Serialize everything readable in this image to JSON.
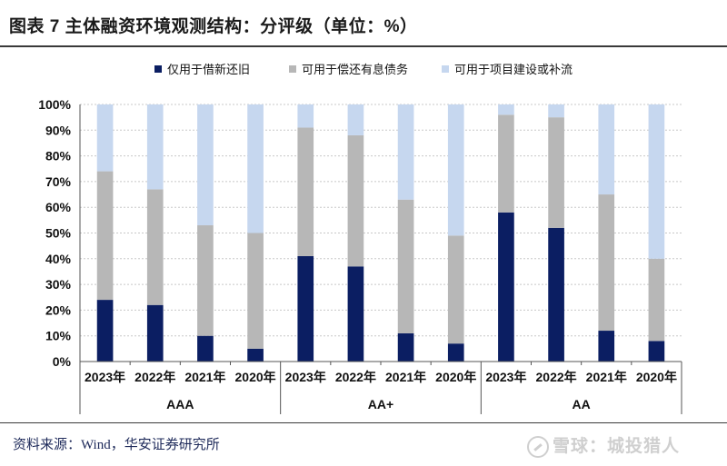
{
  "title": "图表 7  主体融资环境观测结构：分评级（单位：%）",
  "source": "资料来源：Wind，华安证券研究所",
  "watermark": "雪球：城投猎人",
  "colors": {
    "series1": "#0b1e62",
    "series2": "#b7b7b7",
    "series3": "#c6d7ef",
    "text": "#111111",
    "grid": "#c8c8c8"
  },
  "chart_data": {
    "type": "bar",
    "stacked": true,
    "groups": [
      {
        "name": "AAA",
        "categories": [
          "2023年",
          "2022年",
          "2021年",
          "2020年"
        ]
      },
      {
        "name": "AA+",
        "categories": [
          "2023年",
          "2022年",
          "2021年",
          "2020年"
        ]
      },
      {
        "name": "AA",
        "categories": [
          "2023年",
          "2022年",
          "2021年",
          "2020年"
        ]
      }
    ],
    "series": [
      {
        "name": "仅用于借新还旧",
        "color": "#0b1e62",
        "values": [
          24,
          22,
          10,
          5,
          41,
          37,
          11,
          7,
          58,
          52,
          12,
          8
        ]
      },
      {
        "name": "可用于偿还有息债务",
        "color": "#b7b7b7",
        "values": [
          50,
          45,
          43,
          45,
          50,
          51,
          52,
          42,
          38,
          43,
          53,
          32
        ]
      },
      {
        "name": "可用于项目建设或补流",
        "color": "#c6d7ef",
        "values": [
          26,
          33,
          47,
          50,
          9,
          12,
          37,
          51,
          4,
          5,
          35,
          60
        ]
      }
    ],
    "yticks": [
      "0%",
      "10%",
      "20%",
      "30%",
      "40%",
      "50%",
      "60%",
      "70%",
      "80%",
      "90%",
      "100%"
    ],
    "ylim": [
      0,
      100
    ],
    "grid": true,
    "legend_position": "top"
  }
}
